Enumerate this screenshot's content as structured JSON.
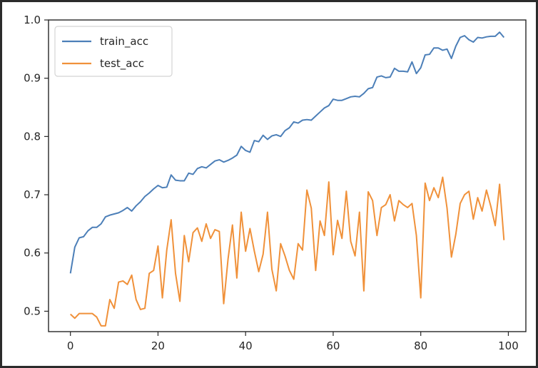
{
  "chart_data": {
    "type": "line",
    "title": "",
    "xlabel": "",
    "ylabel": "",
    "xlim": [
      -5,
      104
    ],
    "ylim": [
      0.465,
      1.0
    ],
    "xticks": [
      0,
      20,
      40,
      60,
      80,
      100
    ],
    "yticks": [
      0.5,
      0.6,
      0.7,
      0.8,
      0.9,
      1.0
    ],
    "xtick_labels": [
      "0",
      "20",
      "40",
      "60",
      "80",
      "100"
    ],
    "ytick_labels": [
      "0.5",
      "0.6",
      "0.7",
      "0.8",
      "0.9",
      "1.0"
    ],
    "grid": false,
    "legend_position": "upper left",
    "x": [
      0,
      1,
      2,
      3,
      4,
      5,
      6,
      7,
      8,
      9,
      10,
      11,
      12,
      13,
      14,
      15,
      16,
      17,
      18,
      19,
      20,
      21,
      22,
      23,
      24,
      25,
      26,
      27,
      28,
      29,
      30,
      31,
      32,
      33,
      34,
      35,
      36,
      37,
      38,
      39,
      40,
      41,
      42,
      43,
      44,
      45,
      46,
      47,
      48,
      49,
      50,
      51,
      52,
      53,
      54,
      55,
      56,
      57,
      58,
      59,
      60,
      61,
      62,
      63,
      64,
      65,
      66,
      67,
      68,
      69,
      70,
      71,
      72,
      73,
      74,
      75,
      76,
      77,
      78,
      79,
      80,
      81,
      82,
      83,
      84,
      85,
      86,
      87,
      88,
      89,
      90,
      91,
      92,
      93,
      94,
      95,
      96,
      97,
      98,
      99
    ],
    "series": [
      {
        "name": "train_acc",
        "color": "#4c7fb8",
        "values": [
          0.565,
          0.61,
          0.626,
          0.628,
          0.638,
          0.644,
          0.644,
          0.65,
          0.662,
          0.665,
          0.667,
          0.669,
          0.673,
          0.678,
          0.672,
          0.681,
          0.688,
          0.697,
          0.703,
          0.71,
          0.716,
          0.712,
          0.713,
          0.734,
          0.725,
          0.724,
          0.724,
          0.737,
          0.735,
          0.745,
          0.748,
          0.746,
          0.752,
          0.758,
          0.76,
          0.756,
          0.759,
          0.763,
          0.768,
          0.783,
          0.776,
          0.773,
          0.793,
          0.791,
          0.802,
          0.795,
          0.801,
          0.803,
          0.8,
          0.81,
          0.815,
          0.825,
          0.823,
          0.828,
          0.829,
          0.828,
          0.835,
          0.842,
          0.849,
          0.853,
          0.864,
          0.862,
          0.862,
          0.865,
          0.868,
          0.869,
          0.868,
          0.874,
          0.882,
          0.884,
          0.902,
          0.904,
          0.901,
          0.902,
          0.917,
          0.912,
          0.912,
          0.911,
          0.928,
          0.908,
          0.918,
          0.94,
          0.941,
          0.952,
          0.952,
          0.948,
          0.95,
          0.934,
          0.955,
          0.97,
          0.973,
          0.966,
          0.962,
          0.97,
          0.969,
          0.971,
          0.972,
          0.972,
          0.979,
          0.97
        ]
      },
      {
        "name": "test_acc",
        "color": "#f0913a",
        "values": [
          0.495,
          0.488,
          0.496,
          0.496,
          0.496,
          0.496,
          0.49,
          0.475,
          0.475,
          0.52,
          0.505,
          0.55,
          0.552,
          0.546,
          0.562,
          0.52,
          0.503,
          0.505,
          0.565,
          0.57,
          0.612,
          0.523,
          0.605,
          0.657,
          0.565,
          0.517,
          0.63,
          0.585,
          0.635,
          0.643,
          0.62,
          0.65,
          0.625,
          0.64,
          0.637,
          0.513,
          0.59,
          0.648,
          0.557,
          0.67,
          0.603,
          0.642,
          0.603,
          0.568,
          0.598,
          0.67,
          0.572,
          0.535,
          0.616,
          0.595,
          0.57,
          0.555,
          0.616,
          0.605,
          0.708,
          0.677,
          0.57,
          0.655,
          0.63,
          0.722,
          0.597,
          0.656,
          0.625,
          0.706,
          0.62,
          0.595,
          0.67,
          0.535,
          0.705,
          0.69,
          0.63,
          0.678,
          0.683,
          0.7,
          0.655,
          0.69,
          0.683,
          0.678,
          0.685,
          0.63,
          0.523,
          0.72,
          0.69,
          0.712,
          0.695,
          0.73,
          0.677,
          0.593,
          0.632,
          0.685,
          0.7,
          0.706,
          0.658,
          0.695,
          0.672,
          0.708,
          0.68,
          0.647,
          0.718,
          0.622
        ]
      }
    ]
  }
}
